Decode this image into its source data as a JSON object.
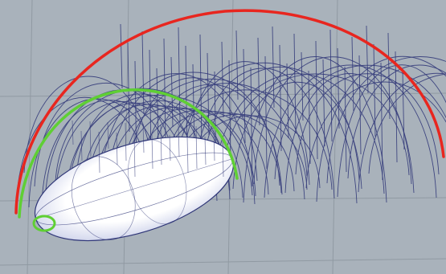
{
  "scene": {
    "background_color": "#a9b2bb",
    "grid_color": "#8a949d",
    "wireframe_color": "#2e3577",
    "outer_curve_color": "#e8261f",
    "inner_curve_color": "#5fcf34",
    "marker_color": "#5fcf34",
    "ellipsoid_fill": "#ffffff",
    "ellipsoid_shadow": "#8a93c7",
    "ellipsoid_outline": "#2e3577"
  }
}
